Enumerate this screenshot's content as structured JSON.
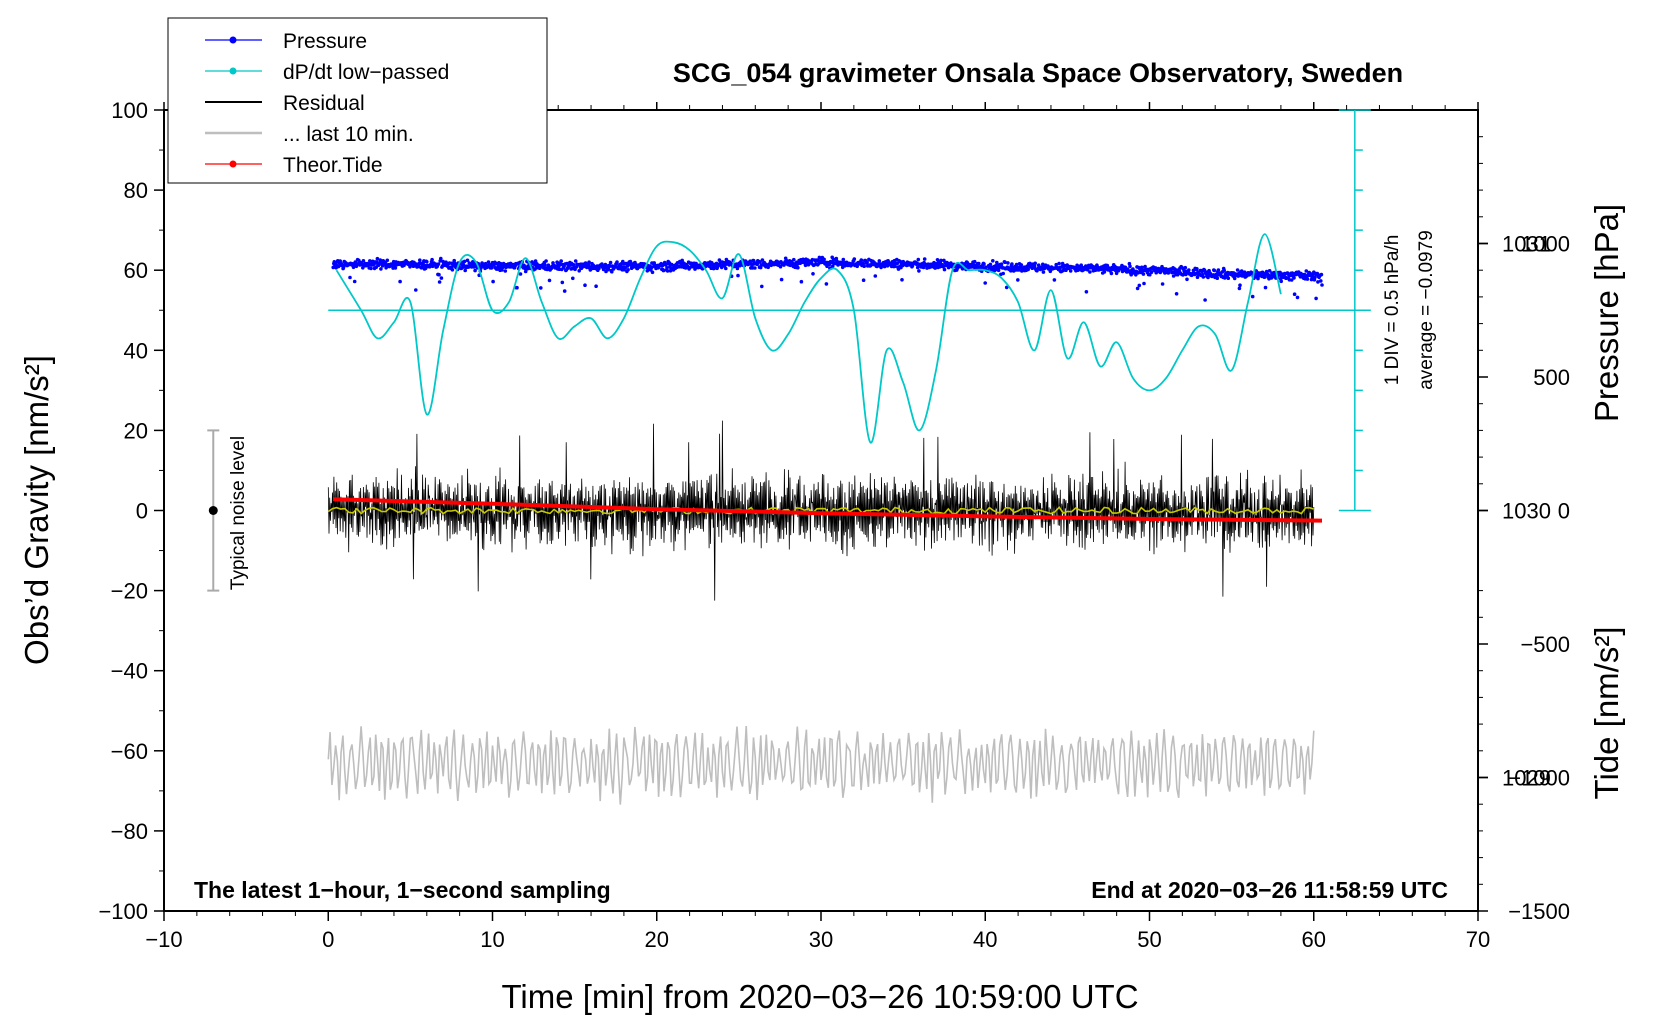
{
  "chart_data": {
    "type": "line",
    "title": "SCG_054 gravimeter Onsala Space Observatory, Sweden",
    "xlabel": "Time [min] from 2020−03−26 10:59:00 UTC",
    "ylabel_left": "Obs’d Gravity [nm/s²]",
    "ylabel_right_top": "Pressure [hPa]",
    "ylabel_right_bottom": "Tide [nm/s²]",
    "xlim": [
      -10,
      70
    ],
    "ylim_left": [
      -100,
      100
    ],
    "pressure_range_hpa": [
      1028.5,
      1031.5
    ],
    "tide_range": [
      -1500,
      1500
    ],
    "x_ticks": [
      -10,
      0,
      10,
      20,
      30,
      40,
      50,
      60,
      70
    ],
    "x_tick_labels": [
      "−10",
      "0",
      "10",
      "20",
      "30",
      "40",
      "50",
      "60",
      "70"
    ],
    "y_ticks": [
      -100,
      -80,
      -60,
      -40,
      -20,
      0,
      20,
      40,
      60,
      80,
      100
    ],
    "y_tick_labels": [
      "−100",
      "−80",
      "−60",
      "−40",
      "−20",
      "0",
      "20",
      "40",
      "60",
      "80",
      "100"
    ],
    "pressure_ticks": [
      1029,
      1030,
      1031
    ],
    "pressure_tick_labels": [
      "1029",
      "1030",
      "1031"
    ],
    "tide_ticks": [
      -1500,
      -1000,
      -500,
      0,
      500,
      1000
    ],
    "tide_tick_labels": [
      "−1500",
      "−1000",
      "−500",
      "0",
      "500",
      "1000"
    ],
    "legend": [
      {
        "label": "Pressure",
        "color": "#0000ff",
        "marker": true
      },
      {
        "label": "dP/dt low−passed",
        "color": "#00c8c8",
        "marker": true
      },
      {
        "label": "Residual",
        "color": "#000000",
        "marker": false
      },
      {
        "label": "... last 10 min.",
        "color": "#bebebe",
        "marker": false
      },
      {
        "label": "Theor.Tide",
        "color": "#ff0000",
        "marker": true
      }
    ],
    "annotations": {
      "bottom_left": "The latest 1−hour, 1−second sampling",
      "bottom_right": "End at 2020−03−26 11:58:59 UTC",
      "noise": "Typical noise level",
      "dpdt_scale": "1 DIV = 0.5 hPa/h",
      "dpdt_average": "average = −0.0979"
    },
    "noise_bar": {
      "x": -7,
      "center": 0,
      "half_range": 20
    },
    "dpdt_baseline_y": 50,
    "dpdt_scale_bar": {
      "x": 62.5,
      "y_min": 0,
      "y_max": 100,
      "divisions": 10
    },
    "series": [
      {
        "name": "Pressure",
        "color": "#0000ff",
        "style": "scatter",
        "x": [
          0.3,
          5,
          10,
          15,
          20,
          25,
          30,
          35,
          40,
          45,
          50,
          55,
          60.5
        ],
        "y": [
          61.5,
          61.5,
          61,
          61,
          61,
          61.5,
          62,
          61.5,
          61,
          60.5,
          60,
          59,
          58.5
        ],
        "scatter_amplitude": 1.5
      },
      {
        "name": "dP/dt low−passed",
        "color": "#00c8c8",
        "style": "line",
        "x": [
          0.5,
          2,
          3,
          4,
          5,
          6,
          7,
          8,
          9,
          10,
          11,
          12,
          13,
          14,
          15,
          16,
          17,
          18,
          19,
          20,
          21,
          22,
          23,
          24,
          25,
          26,
          27,
          28,
          29,
          30,
          31,
          32,
          33,
          34,
          35,
          36,
          37,
          38,
          39,
          40,
          41,
          42,
          43,
          44,
          45,
          46,
          47,
          48,
          49,
          50,
          51,
          52,
          53,
          54,
          55,
          56,
          57,
          58
        ],
        "y": [
          60,
          50,
          43,
          47,
          52,
          24,
          45,
          62,
          62,
          50,
          52,
          63,
          52,
          43,
          46,
          48,
          43,
          48,
          58,
          66,
          67,
          65,
          60,
          53,
          64,
          48,
          40,
          44,
          52,
          58,
          60,
          50,
          17,
          40,
          32,
          20,
          35,
          60,
          60,
          60,
          58,
          52,
          40,
          55,
          38,
          47,
          36,
          42,
          33,
          30,
          33,
          40,
          46,
          44,
          35,
          52,
          69,
          54
        ]
      },
      {
        "name": "Residual",
        "color": "#000000",
        "style": "line",
        "x_range": [
          0,
          60
        ],
        "center": 0,
        "amplitude_envelope": 12
      },
      {
        "name": "Residual (smoothed)",
        "color": "#c8c800",
        "style": "line",
        "x_range": [
          0,
          60
        ],
        "center": 0
      },
      {
        "name": "... last 10 min.",
        "color": "#bebebe",
        "style": "line",
        "x_range": [
          0,
          60
        ],
        "center": -63,
        "amplitude_envelope": 9
      },
      {
        "name": "Theor.Tide",
        "color": "#ff0000",
        "style": "line",
        "x": [
          0.3,
          10,
          20,
          30,
          40,
          50,
          60.5
        ],
        "tide": [
          42,
          25,
          5,
          -10,
          -22,
          -32,
          -38
        ]
      }
    ]
  }
}
